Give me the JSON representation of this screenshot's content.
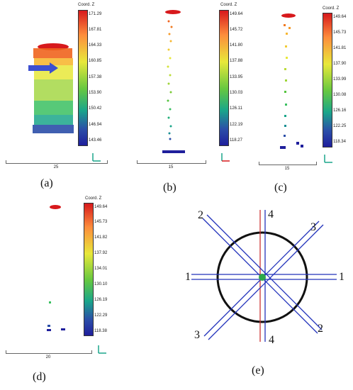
{
  "panels": [
    {
      "id": "a",
      "caption": "(a)",
      "colorbar_title": "Coord. Z",
      "ticks": [
        "171.29",
        "167.81",
        "164.33",
        "160.85",
        "157.38",
        "153.90",
        "150.42",
        "146.94",
        "143.46"
      ],
      "scale": "25",
      "axis_color": "#1aa68a"
    },
    {
      "id": "b",
      "caption": "(b)",
      "colorbar_title": "Coord. Z",
      "ticks": [
        "149.64",
        "145.72",
        "141.80",
        "137.88",
        "133.95",
        "130.03",
        "126.11",
        "122.19",
        "118.27"
      ],
      "scale": "15",
      "axis_color": "#d7191c"
    },
    {
      "id": "c",
      "caption": "(c)",
      "colorbar_title": "Coord. Z",
      "ticks": [
        "149.64",
        "145.73",
        "141.81",
        "137.90",
        "133.99",
        "130.08",
        "126.16",
        "122.25",
        "118.34"
      ],
      "scale": "15",
      "axis_color": "#1aa68a"
    },
    {
      "id": "d",
      "caption": "(d)",
      "colorbar_title": "Coord. Z",
      "ticks": [
        "149.64",
        "145.73",
        "141.82",
        "137.92",
        "134.01",
        "130.10",
        "126.19",
        "122.29",
        "118.38"
      ],
      "scale": "20",
      "axis_color": "#1aa68a"
    }
  ],
  "diagram": {
    "caption": "(e)",
    "labels": {
      "l1a": "1",
      "l1b": "1",
      "l2a": "2",
      "l2b": "2",
      "l3a": "3",
      "l3b": "3",
      "l4a": "4",
      "l4b": "4"
    },
    "colors": {
      "circle": "#111111",
      "lines": "#2233bb",
      "vertical": "#cc3333",
      "center": "#2ea84a"
    }
  }
}
